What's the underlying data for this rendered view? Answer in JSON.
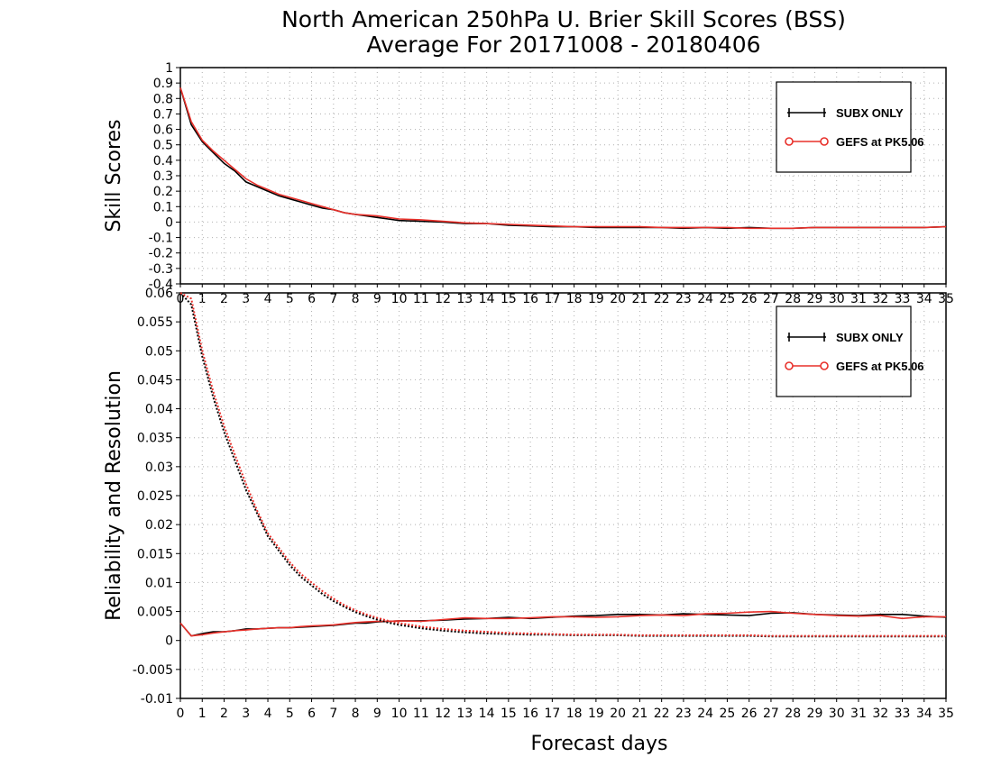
{
  "title_line1": "North American 250hPa U. Brier Skill Scores (BSS)",
  "title_line2": "Average For 20171008 - 20180406",
  "colors": {
    "ctrl": "#000000",
    "gefs": "#e8302a"
  },
  "chart_data": [
    {
      "type": "line",
      "ylabel": "Skill Scores",
      "xlabel": "",
      "xlim": [
        0,
        35
      ],
      "ylim": [
        -0.4,
        1.0
      ],
      "x_ticks": [
        0,
        1,
        2,
        3,
        4,
        5,
        6,
        7,
        8,
        9,
        10,
        11,
        12,
        13,
        14,
        15,
        16,
        17,
        18,
        19,
        20,
        21,
        22,
        23,
        24,
        25,
        26,
        27,
        28,
        29,
        30,
        31,
        32,
        33,
        34,
        35
      ],
      "y_ticks": [
        -0.4,
        -0.3,
        -0.2,
        -0.1,
        0,
        0.1,
        0.2,
        0.3,
        0.4,
        0.5,
        0.6,
        0.7,
        0.8,
        0.9,
        1
      ],
      "y_tick_labels": [
        "-0.4",
        "-0.3",
        "-0.2",
        "-0.1",
        "0",
        "0.1",
        "0.2",
        "0.3",
        "0.4",
        "0.5",
        "0.6",
        "0.7",
        "0.8",
        "0.9",
        "1"
      ],
      "grid": true,
      "legend_position": "top-right",
      "legend": [
        "SUBX ONLY",
        "GEFS at PK5.06"
      ],
      "x": [
        0,
        0.5,
        1,
        1.5,
        2,
        2.5,
        3,
        3.5,
        4,
        4.5,
        5,
        5.5,
        6,
        6.5,
        7,
        7.5,
        8,
        8.5,
        9,
        9.5,
        10,
        11,
        12,
        13,
        14,
        15,
        16,
        17,
        18,
        19,
        20,
        21,
        22,
        23,
        24,
        25,
        26,
        27,
        28,
        29,
        30,
        31,
        32,
        33,
        34,
        35
      ],
      "series": [
        {
          "name": "SUBX ONLY",
          "color": "#000000",
          "values": [
            0.87,
            0.63,
            0.52,
            0.45,
            0.38,
            0.33,
            0.26,
            0.23,
            0.2,
            0.17,
            0.15,
            0.13,
            0.11,
            0.09,
            0.08,
            0.06,
            0.05,
            0.04,
            0.03,
            0.02,
            0.01,
            0.005,
            0.0,
            -0.01,
            -0.01,
            -0.02,
            -0.025,
            -0.03,
            -0.03,
            -0.035,
            -0.035,
            -0.035,
            -0.035,
            -0.04,
            -0.035,
            -0.04,
            -0.035,
            -0.04,
            -0.04,
            -0.035,
            -0.035,
            -0.035,
            -0.035,
            -0.035,
            -0.035,
            -0.03
          ]
        },
        {
          "name": "GEFS at PK5.06",
          "color": "#e8302a",
          "values": [
            0.87,
            0.65,
            0.53,
            0.46,
            0.4,
            0.34,
            0.28,
            0.24,
            0.21,
            0.18,
            0.16,
            0.14,
            0.12,
            0.1,
            0.08,
            0.06,
            0.05,
            0.045,
            0.04,
            0.03,
            0.02,
            0.015,
            0.005,
            -0.005,
            -0.01,
            -0.015,
            -0.02,
            -0.025,
            -0.03,
            -0.03,
            -0.03,
            -0.03,
            -0.035,
            -0.035,
            -0.035,
            -0.035,
            -0.04,
            -0.04,
            -0.04,
            -0.035,
            -0.035,
            -0.035,
            -0.035,
            -0.035,
            -0.035,
            -0.03
          ]
        }
      ]
    },
    {
      "type": "line",
      "ylabel": "Reliability and Resolution",
      "xlabel": "Forecast days",
      "xlim": [
        0,
        35
      ],
      "ylim": [
        -0.01,
        0.06
      ],
      "x_ticks": [
        0,
        1,
        2,
        3,
        4,
        5,
        6,
        7,
        8,
        9,
        10,
        11,
        12,
        13,
        14,
        15,
        16,
        17,
        18,
        19,
        20,
        21,
        22,
        23,
        24,
        25,
        26,
        27,
        28,
        29,
        30,
        31,
        32,
        33,
        34,
        35
      ],
      "y_ticks": [
        -0.01,
        -0.005,
        0,
        0.005,
        0.01,
        0.015,
        0.02,
        0.025,
        0.03,
        0.035,
        0.04,
        0.045,
        0.05,
        0.055,
        0.06
      ],
      "y_tick_labels": [
        "-0.01",
        "-0.005",
        "0",
        "0.005",
        "0.01",
        "0.015",
        "0.02",
        "0.025",
        "0.03",
        "0.035",
        "0.04",
        "0.045",
        "0.05",
        "0.055",
        "0.06"
      ],
      "grid": true,
      "legend_position": "top-right",
      "legend": [
        "SUBX ONLY",
        "GEFS at PK5.06"
      ],
      "x": [
        0,
        0.5,
        1,
        1.5,
        2,
        2.5,
        3,
        3.5,
        4,
        4.5,
        5,
        5.5,
        6,
        6.5,
        7,
        7.5,
        8,
        8.5,
        9,
        9.5,
        10,
        11,
        12,
        13,
        14,
        15,
        16,
        17,
        18,
        19,
        20,
        21,
        22,
        23,
        24,
        25,
        26,
        27,
        28,
        29,
        30,
        31,
        32,
        33,
        34,
        35
      ],
      "series": [
        {
          "name": "SUBX ONLY reliability",
          "color": "#000000",
          "style": "solid",
          "values": [
            0.003,
            0.0008,
            0.0012,
            0.0015,
            0.0015,
            0.0017,
            0.002,
            0.002,
            0.0021,
            0.0022,
            0.0022,
            0.0023,
            0.0024,
            0.0025,
            0.0026,
            0.0028,
            0.003,
            0.003,
            0.0032,
            0.0033,
            0.0034,
            0.0034,
            0.0035,
            0.0037,
            0.0038,
            0.004,
            0.0038,
            0.004,
            0.0042,
            0.0043,
            0.0045,
            0.0045,
            0.0044,
            0.0046,
            0.0045,
            0.0044,
            0.0043,
            0.0047,
            0.0048,
            0.0045,
            0.0044,
            0.0043,
            0.0045,
            0.0045,
            0.0042,
            0.004
          ]
        },
        {
          "name": "GEFS at PK5.06 reliability",
          "color": "#e8302a",
          "style": "solid",
          "values": [
            0.003,
            0.0008,
            0.001,
            0.0013,
            0.0015,
            0.0017,
            0.0018,
            0.002,
            0.0021,
            0.0022,
            0.0022,
            0.0024,
            0.0025,
            0.0026,
            0.0027,
            0.0029,
            0.0031,
            0.0032,
            0.0033,
            0.0033,
            0.0034,
            0.0033,
            0.0036,
            0.0039,
            0.0038,
            0.0038,
            0.0039,
            0.0041,
            0.0041,
            0.004,
            0.0041,
            0.0043,
            0.0044,
            0.0043,
            0.0046,
            0.0047,
            0.0049,
            0.005,
            0.0047,
            0.0045,
            0.0043,
            0.0042,
            0.0043,
            0.0038,
            0.0041,
            0.0041
          ]
        },
        {
          "name": "SUBX ONLY resolution",
          "color": "#000000",
          "style": "dotted",
          "values": [
            0.065,
            0.058,
            0.049,
            0.042,
            0.036,
            0.031,
            0.026,
            0.022,
            0.018,
            0.0155,
            0.013,
            0.011,
            0.0095,
            0.008,
            0.0068,
            0.0058,
            0.0049,
            0.0042,
            0.0036,
            0.0031,
            0.0027,
            0.0021,
            0.0017,
            0.0014,
            0.0012,
            0.0011,
            0.001,
            0.001,
            0.0009,
            0.0009,
            0.0009,
            0.0008,
            0.0008,
            0.0008,
            0.0008,
            0.0008,
            0.0008,
            0.0007,
            0.0007,
            0.0007,
            0.0007,
            0.0007,
            0.0007,
            0.0007,
            0.0007,
            0.0007
          ]
        },
        {
          "name": "GEFS at PK5.06 resolution",
          "color": "#e8302a",
          "style": "dotted",
          "values": [
            0.065,
            0.059,
            0.05,
            0.043,
            0.037,
            0.032,
            0.027,
            0.0225,
            0.0185,
            0.016,
            0.0135,
            0.0115,
            0.01,
            0.0085,
            0.0072,
            0.0061,
            0.0052,
            0.0045,
            0.0039,
            0.0034,
            0.003,
            0.0024,
            0.002,
            0.0017,
            0.0015,
            0.0013,
            0.0012,
            0.0011,
            0.001,
            0.001,
            0.001,
            0.0009,
            0.0009,
            0.0009,
            0.0009,
            0.0009,
            0.0009,
            0.0008,
            0.0008,
            0.0008,
            0.0008,
            0.0008,
            0.0008,
            0.0008,
            0.0008,
            0.0008
          ]
        }
      ]
    }
  ]
}
